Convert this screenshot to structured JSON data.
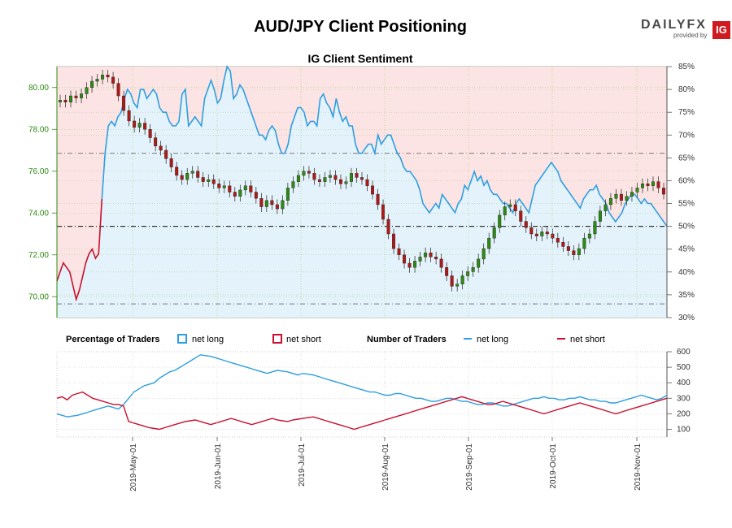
{
  "header": {
    "title": "AUD/JPY Client Positioning",
    "subtitle": "IG Client Sentiment",
    "logo_text": "DAILYFX",
    "logo_sub": "provided by",
    "logo_badge": "IG"
  },
  "legend": {
    "pct_title": "Percentage of Traders",
    "pct_long": "net long",
    "pct_short": "net short",
    "num_title": "Number of Traders",
    "num_long": "net long",
    "num_short": "net short"
  },
  "colors": {
    "long": "#2e9ee0",
    "short": "#c8102e",
    "long_fill": "#e4f3fb",
    "short_fill": "#fde4e4",
    "price_axis": "#2d8a12",
    "candle_up": "#2d8a12",
    "candle_down": "#b01818"
  },
  "chart_data": [
    {
      "type": "line",
      "subtype": "candlestick with sentiment overlay",
      "title": "IG Client Sentiment",
      "left_axis": {
        "ylim": [
          69.0,
          81.0
        ],
        "ticks": [
          "70.00",
          "72.00",
          "74.00",
          "76.00",
          "78.00",
          "80.00"
        ]
      },
      "right_axis": {
        "ylim": [
          30,
          85
        ],
        "ticks": [
          "30%",
          "35%",
          "40%",
          "45%",
          "50%",
          "55%",
          "60%",
          "65%",
          "70%",
          "75%",
          "80%",
          "85%"
        ]
      },
      "x_dates": [
        "2019-May-01",
        "2019-Jun-01",
        "2019-Jul-01",
        "2019-Aug-01",
        "2019-Sep-01",
        "2019-Oct-01",
        "2019-Nov-01"
      ],
      "reference_lines_pct": [
        33,
        50,
        66
      ],
      "pct_long": [
        38,
        40,
        42,
        41,
        40,
        37,
        34,
        36,
        39,
        42,
        44,
        45,
        43,
        44,
        56,
        66,
        72,
        73,
        72,
        74,
        75,
        78,
        80,
        79,
        77,
        76,
        80,
        80,
        78,
        79,
        80,
        79,
        76,
        75,
        75,
        73,
        72,
        72,
        73,
        79,
        80,
        72,
        73,
        74,
        73,
        72,
        78,
        80,
        82,
        80,
        77,
        78,
        82,
        85,
        84,
        78,
        79,
        81,
        80,
        78,
        76,
        74,
        72,
        70,
        70,
        69,
        71,
        72,
        71,
        68,
        66,
        66,
        68,
        72,
        74,
        76,
        76,
        75,
        72,
        73,
        73,
        72,
        78,
        79,
        77,
        76,
        74,
        78,
        75,
        73,
        74,
        72,
        72,
        68,
        66,
        66,
        67,
        68,
        68,
        66,
        70,
        68,
        69,
        70,
        70,
        68,
        66,
        65,
        63,
        62,
        62,
        61,
        60,
        58,
        55,
        54,
        53,
        54,
        55,
        54,
        57,
        56,
        55,
        54,
        53,
        55,
        56,
        59,
        58,
        60,
        62,
        60,
        61,
        59,
        60,
        58,
        57,
        57,
        56,
        55,
        55,
        54,
        53,
        55,
        56,
        55,
        54,
        53,
        56,
        59,
        60,
        61,
        62,
        63,
        64,
        63,
        62,
        60,
        59,
        58,
        57,
        56,
        55,
        54,
        56,
        57,
        58,
        58,
        59,
        57,
        56,
        55,
        53,
        52,
        51,
        52,
        53,
        55,
        56,
        57,
        57,
        56,
        55,
        56,
        55,
        55,
        54,
        53,
        52,
        51,
        50
      ],
      "pct_short": [
        62,
        60,
        58,
        59,
        60,
        63,
        66,
        64,
        61,
        58,
        56,
        55,
        57,
        56,
        44,
        34,
        28,
        27,
        28,
        26,
        25,
        22,
        20,
        21,
        23,
        24,
        20,
        20,
        22,
        21,
        20,
        21,
        24,
        25,
        25,
        27,
        28,
        28,
        27,
        21,
        20,
        28,
        27,
        26,
        27,
        28,
        22,
        20,
        18,
        20,
        23,
        22,
        18,
        15,
        16,
        22,
        21,
        19,
        20,
        22,
        24,
        26,
        28,
        30,
        30,
        31,
        29,
        28,
        29,
        32,
        34,
        34,
        32,
        28,
        26,
        24,
        24,
        25,
        28,
        27,
        27,
        28,
        22,
        21,
        23,
        24,
        26,
        22,
        25,
        27,
        26,
        28,
        28,
        32,
        34,
        34,
        33,
        32,
        32,
        34,
        30,
        32,
        31,
        30,
        30,
        32,
        34,
        35,
        37,
        38,
        38,
        39,
        40,
        42,
        45,
        46,
        47,
        46,
        45,
        46,
        43,
        44,
        45,
        46,
        47,
        45,
        44,
        41,
        42,
        40,
        38,
        40,
        39,
        41,
        40,
        42,
        43,
        43,
        44,
        45,
        45,
        46,
        47,
        45,
        44,
        45,
        46,
        47,
        44,
        41,
        40,
        39,
        38,
        37,
        36,
        37,
        38,
        40,
        41,
        42,
        43,
        44,
        45,
        46,
        44,
        43,
        42,
        42,
        41,
        43,
        44,
        45,
        47,
        48,
        49,
        48,
        47,
        45,
        44,
        43,
        43,
        44,
        45,
        44,
        45,
        45,
        46,
        47,
        48,
        49,
        50
      ],
      "price_close": [
        79.4,
        79.3,
        79.6,
        79.5,
        79.7,
        80.0,
        80.3,
        80.4,
        80.6,
        80.5,
        80.2,
        79.6,
        78.9,
        78.4,
        78.1,
        78.3,
        78.0,
        77.6,
        77.2,
        77.0,
        76.6,
        76.2,
        75.8,
        75.6,
        75.9,
        76.0,
        75.7,
        75.5,
        75.6,
        75.4,
        75.2,
        75.3,
        75.0,
        74.8,
        75.1,
        75.3,
        75.0,
        74.7,
        74.3,
        74.6,
        74.4,
        74.2,
        74.6,
        75.2,
        75.5,
        75.8,
        76.0,
        75.9,
        75.6,
        75.5,
        75.7,
        75.8,
        75.6,
        75.4,
        75.5,
        75.9,
        75.7,
        75.6,
        75.3,
        74.9,
        74.4,
        73.7,
        73.0,
        72.3,
        72.0,
        71.6,
        71.4,
        71.7,
        71.9,
        72.1,
        71.9,
        71.8,
        71.4,
        71.0,
        70.5,
        70.6,
        71.0,
        71.2,
        71.4,
        71.8,
        72.3,
        72.8,
        73.3,
        73.9,
        74.3,
        74.4,
        74.1,
        73.6,
        73.3,
        73.0,
        72.9,
        73.1,
        73.0,
        72.8,
        72.6,
        72.4,
        72.2,
        72.0,
        72.3,
        72.8,
        73.0,
        73.6,
        74.1,
        74.4,
        74.7,
        74.9,
        74.6,
        74.8,
        75.0,
        75.2,
        75.4,
        75.3,
        75.5,
        75.2,
        74.9
      ],
      "long_traders": [
        200,
        190,
        180,
        185,
        190,
        200,
        210,
        220,
        230,
        240,
        250,
        240,
        230,
        260,
        300,
        340,
        360,
        380,
        390,
        400,
        430,
        450,
        470,
        480,
        500,
        520,
        540,
        560,
        580,
        575,
        570,
        560,
        550,
        540,
        530,
        520,
        510,
        500,
        490,
        480,
        470,
        460,
        470,
        480,
        475,
        470,
        460,
        450,
        460,
        455,
        450,
        440,
        430,
        420,
        410,
        400,
        390,
        380,
        370,
        360,
        350,
        340,
        340,
        330,
        320,
        320,
        330,
        330,
        320,
        310,
        300,
        300,
        290,
        280,
        280,
        290,
        300,
        300,
        290,
        280,
        280,
        270,
        260,
        260,
        270,
        270,
        260,
        250,
        250,
        260,
        270,
        280,
        290,
        300,
        300,
        310,
        300,
        300,
        290,
        290,
        300,
        300,
        310,
        300,
        290,
        290,
        280,
        280,
        270,
        270,
        280,
        290,
        300,
        310,
        320,
        310,
        300,
        290,
        300,
        320
      ],
      "short_traders": [
        300,
        310,
        290,
        320,
        330,
        340,
        320,
        300,
        290,
        280,
        270,
        260,
        260,
        250,
        150,
        140,
        130,
        120,
        110,
        105,
        100,
        110,
        120,
        130,
        140,
        150,
        155,
        160,
        150,
        140,
        130,
        140,
        150,
        160,
        170,
        160,
        150,
        140,
        130,
        140,
        150,
        160,
        170,
        160,
        155,
        150,
        160,
        165,
        170,
        175,
        180,
        170,
        160,
        150,
        140,
        130,
        120,
        110,
        100,
        110,
        120,
        130,
        140,
        150,
        160,
        170,
        180,
        190,
        200,
        210,
        220,
        230,
        240,
        250,
        260,
        270,
        280,
        290,
        300,
        310,
        300,
        290,
        280,
        270,
        260,
        260,
        270,
        280,
        270,
        260,
        250,
        240,
        230,
        220,
        210,
        200,
        210,
        220,
        230,
        240,
        250,
        260,
        270,
        260,
        250,
        240,
        230,
        220,
        210,
        200,
        210,
        220,
        230,
        240,
        250,
        260,
        270,
        280,
        290,
        300
      ]
    },
    {
      "type": "line",
      "title": "",
      "legend_groups": [
        "Percentage of Traders",
        "Number of Traders"
      ],
      "y_ticks": [
        "100",
        "200",
        "300",
        "400",
        "500",
        "600"
      ],
      "ylim": [
        50,
        600
      ],
      "series": [
        {
          "name": "net long",
          "color": "#2e9ee0"
        },
        {
          "name": "net short",
          "color": "#c8102e"
        }
      ]
    }
  ]
}
